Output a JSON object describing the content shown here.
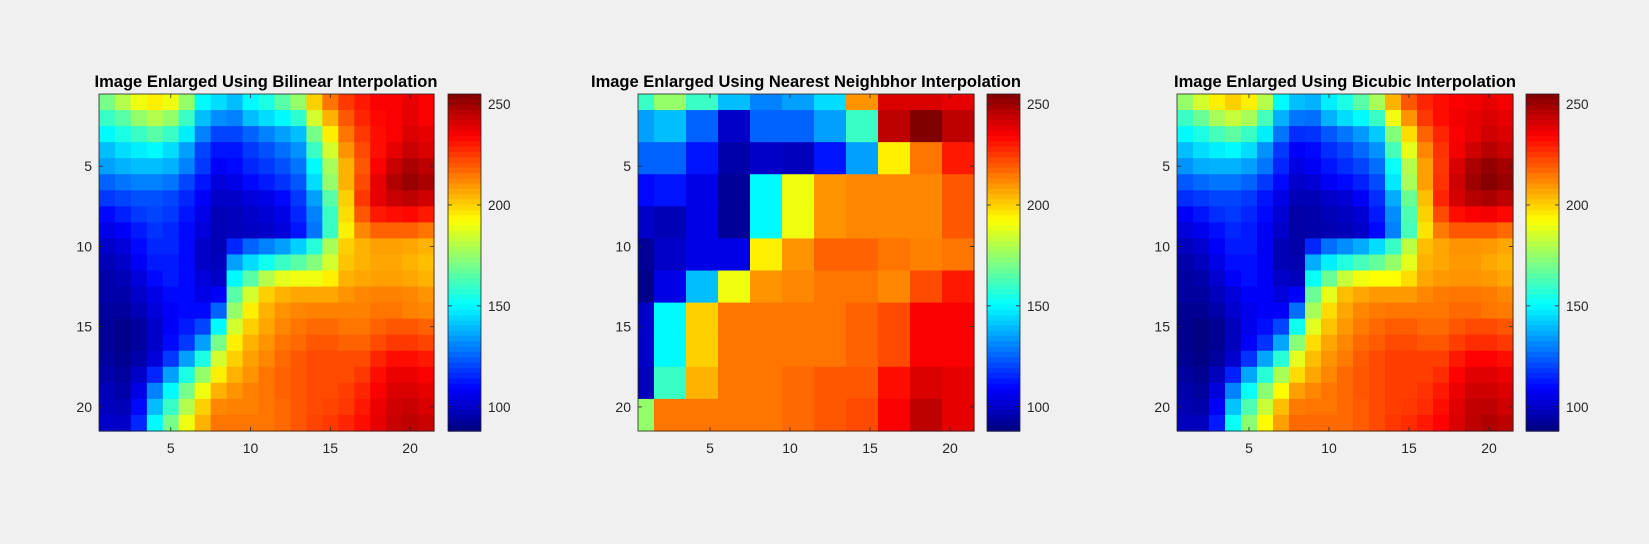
{
  "figure": {
    "background": "#f0f0f0"
  },
  "chart_data": [
    {
      "type": "heatmap",
      "title": "Image Enlarged Using Bilinear Interpolation",
      "colormap": "jet",
      "xlim": [
        0.5,
        21.5
      ],
      "ylim": [
        0.5,
        21.5
      ],
      "y_reversed": true,
      "xticks": [
        5,
        10,
        15,
        20
      ],
      "yticks": [
        5,
        10,
        15,
        20
      ],
      "clim": [
        88,
        255
      ],
      "colorbar_ticks": [
        100,
        150,
        200,
        250
      ],
      "grid": false,
      "z": [
        [
          170,
          180,
          190,
          195,
          190,
          175,
          150,
          145,
          140,
          150,
          155,
          165,
          175,
          200,
          215,
          225,
          230,
          235,
          235,
          238,
          235
        ],
        [
          160,
          165,
          175,
          180,
          175,
          160,
          140,
          132,
          130,
          140,
          145,
          150,
          158,
          185,
          205,
          220,
          228,
          233,
          235,
          238,
          235
        ],
        [
          150,
          155,
          160,
          165,
          160,
          148,
          130,
          120,
          120,
          125,
          130,
          135,
          140,
          170,
          195,
          215,
          225,
          232,
          235,
          240,
          238
        ],
        [
          140,
          145,
          148,
          150,
          145,
          135,
          120,
          112,
          112,
          118,
          122,
          127,
          133,
          160,
          185,
          210,
          222,
          232,
          238,
          243,
          240
        ],
        [
          135,
          138,
          140,
          140,
          138,
          130,
          118,
          108,
          110,
          115,
          118,
          122,
          128,
          150,
          178,
          205,
          220,
          235,
          243,
          248,
          245
        ],
        [
          125,
          128,
          130,
          130,
          128,
          120,
          112,
          103,
          105,
          110,
          113,
          117,
          123,
          145,
          175,
          205,
          222,
          238,
          247,
          251,
          248
        ],
        [
          118,
          120,
          122,
          122,
          120,
          115,
          108,
          100,
          100,
          103,
          105,
          110,
          118,
          135,
          165,
          200,
          225,
          238,
          243,
          245,
          242
        ],
        [
          110,
          114,
          118,
          120,
          118,
          112,
          105,
          97,
          98,
          100,
          102,
          105,
          115,
          130,
          160,
          198,
          220,
          230,
          232,
          233,
          230
        ],
        [
          105,
          108,
          113,
          117,
          115,
          110,
          103,
          97,
          98,
          99,
          100,
          103,
          112,
          128,
          160,
          195,
          212,
          218,
          218,
          218,
          215
        ],
        [
          100,
          103,
          110,
          115,
          115,
          110,
          100,
          97,
          115,
          125,
          130,
          135,
          143,
          157,
          178,
          200,
          205,
          208,
          208,
          207,
          205
        ],
        [
          97,
          100,
          107,
          113,
          113,
          110,
          100,
          98,
          135,
          145,
          153,
          160,
          165,
          172,
          185,
          202,
          205,
          207,
          207,
          205,
          203
        ],
        [
          95,
          97,
          103,
          110,
          113,
          110,
          103,
          100,
          150,
          165,
          180,
          188,
          190,
          190,
          195,
          205,
          207,
          208,
          208,
          207,
          205
        ],
        [
          95,
          95,
          100,
          105,
          110,
          110,
          105,
          108,
          165,
          185,
          200,
          205,
          207,
          207,
          207,
          210,
          212,
          213,
          213,
          212,
          210
        ],
        [
          93,
          93,
          97,
          103,
          108,
          110,
          110,
          125,
          175,
          195,
          205,
          210,
          212,
          213,
          213,
          213,
          213,
          215,
          215,
          213,
          212
        ],
        [
          92,
          90,
          93,
          100,
          108,
          113,
          120,
          150,
          185,
          200,
          207,
          212,
          215,
          217,
          217,
          215,
          215,
          218,
          220,
          220,
          218
        ],
        [
          92,
          90,
          93,
          100,
          110,
          118,
          135,
          170,
          195,
          205,
          210,
          215,
          217,
          220,
          220,
          218,
          218,
          222,
          225,
          225,
          223
        ],
        [
          93,
          91,
          95,
          103,
          118,
          135,
          155,
          185,
          200,
          208,
          212,
          217,
          220,
          222,
          222,
          222,
          222,
          228,
          232,
          232,
          230
        ],
        [
          95,
          93,
          100,
          115,
          135,
          155,
          175,
          195,
          205,
          210,
          215,
          218,
          220,
          222,
          222,
          222,
          225,
          232,
          237,
          237,
          235
        ],
        [
          97,
          95,
          105,
          130,
          150,
          170,
          190,
          205,
          210,
          213,
          215,
          218,
          220,
          222,
          222,
          224,
          228,
          235,
          240,
          240,
          238
        ],
        [
          98,
          97,
          110,
          140,
          160,
          180,
          200,
          212,
          213,
          213,
          215,
          217,
          220,
          222,
          223,
          225,
          230,
          237,
          242,
          243,
          240
        ],
        [
          100,
          100,
          115,
          150,
          170,
          190,
          205,
          215,
          215,
          215,
          215,
          217,
          220,
          223,
          225,
          228,
          232,
          238,
          243,
          245,
          243
        ]
      ]
    },
    {
      "type": "heatmap",
      "title": "Image Enlarged Using Nearest Neighbhor Interpolation",
      "colormap": "jet",
      "xlim": [
        0.5,
        21.5
      ],
      "ylim": [
        0.5,
        21.5
      ],
      "y_reversed": true,
      "xticks": [
        5,
        10,
        15,
        20
      ],
      "yticks": [
        5,
        10,
        15,
        20
      ],
      "clim": [
        88,
        255
      ],
      "colorbar_ticks": [
        100,
        150,
        200,
        250
      ],
      "grid": false,
      "block_rows": [
        1,
        3,
        5,
        7,
        9,
        11,
        13,
        15,
        17,
        19,
        21
      ],
      "block_cols": [
        1,
        3,
        5,
        7,
        9,
        11,
        13,
        15,
        17,
        19,
        21
      ],
      "block_row_edges": [
        0.5,
        1.5,
        3.5,
        5.5,
        7.5,
        9.5,
        11.5,
        13.5,
        15.5,
        17.5,
        19.5,
        21.5
      ],
      "block_col_edges": [
        0.5,
        1.5,
        3.5,
        5.5,
        7.5,
        9.5,
        11.5,
        13.5,
        15.5,
        17.5,
        19.5,
        21.5
      ],
      "z": [
        [
          160,
          175,
          160,
          140,
          130,
          135,
          145,
          210,
          240,
          240,
          238
        ],
        [
          135,
          140,
          125,
          100,
          125,
          125,
          135,
          160,
          245,
          255,
          245
        ],
        [
          125,
          125,
          112,
          95,
          100,
          98,
          112,
          135,
          195,
          215,
          230
        ],
        [
          110,
          112,
          105,
          92,
          150,
          190,
          210,
          212,
          212,
          212,
          220
        ],
        [
          100,
          97,
          105,
          92,
          150,
          190,
          210,
          212,
          212,
          212,
          220
        ],
        [
          92,
          100,
          105,
          105,
          195,
          210,
          218,
          218,
          215,
          213,
          215
        ],
        [
          90,
          105,
          140,
          190,
          210,
          212,
          215,
          215,
          212,
          222,
          230
        ],
        [
          100,
          150,
          200,
          215,
          215,
          215,
          215,
          218,
          222,
          235,
          235
        ],
        [
          100,
          150,
          200,
          215,
          215,
          215,
          215,
          218,
          222,
          235,
          235
        ],
        [
          98,
          160,
          205,
          215,
          215,
          217,
          220,
          220,
          232,
          240,
          238
        ],
        [
          175,
          215,
          215,
          215,
          215,
          217,
          220,
          222,
          235,
          245,
          238
        ]
      ]
    },
    {
      "type": "heatmap",
      "title": "Image Enlarged Using Bicubic Interpolation",
      "colormap": "jet",
      "xlim": [
        0.5,
        21.5
      ],
      "ylim": [
        0.5,
        21.5
      ],
      "y_reversed": true,
      "xticks": [
        5,
        10,
        15,
        20
      ],
      "yticks": [
        5,
        10,
        15,
        20
      ],
      "clim": [
        88,
        255
      ],
      "colorbar_ticks": [
        100,
        150,
        200,
        250
      ],
      "grid": false,
      "z": [
        [
          175,
          185,
          195,
          200,
          195,
          180,
          150,
          140,
          138,
          148,
          155,
          165,
          178,
          205,
          220,
          228,
          232,
          235,
          236,
          238,
          236
        ],
        [
          160,
          168,
          178,
          183,
          178,
          162,
          138,
          128,
          127,
          138,
          145,
          150,
          160,
          190,
          210,
          225,
          232,
          236,
          238,
          240,
          238
        ],
        [
          150,
          155,
          162,
          166,
          160,
          148,
          128,
          116,
          117,
          123,
          128,
          134,
          142,
          172,
          198,
          218,
          228,
          235,
          238,
          242,
          240
        ],
        [
          140,
          145,
          148,
          150,
          145,
          133,
          118,
          108,
          110,
          116,
          120,
          126,
          133,
          162,
          188,
          212,
          226,
          236,
          242,
          246,
          243
        ],
        [
          133,
          137,
          138,
          138,
          135,
          128,
          115,
          104,
          107,
          112,
          116,
          120,
          127,
          152,
          180,
          208,
          225,
          240,
          248,
          252,
          249
        ],
        [
          123,
          126,
          128,
          128,
          125,
          118,
          110,
          100,
          102,
          107,
          110,
          114,
          121,
          147,
          178,
          208,
          226,
          242,
          250,
          254,
          251
        ],
        [
          116,
          118,
          120,
          120,
          118,
          112,
          105,
          97,
          97,
          100,
          102,
          107,
          116,
          137,
          168,
          203,
          228,
          241,
          246,
          248,
          245
        ],
        [
          108,
          112,
          116,
          118,
          115,
          110,
          102,
          94,
          95,
          97,
          99,
          102,
          113,
          132,
          163,
          200,
          222,
          232,
          235,
          236,
          233
        ],
        [
          103,
          106,
          111,
          115,
          113,
          107,
          100,
          94,
          95,
          96,
          97,
          100,
          110,
          130,
          162,
          197,
          214,
          220,
          220,
          220,
          217
        ],
        [
          98,
          101,
          108,
          113,
          113,
          107,
          97,
          95,
          115,
          127,
          132,
          137,
          145,
          160,
          181,
          203,
          207,
          210,
          210,
          209,
          207
        ],
        [
          95,
          98,
          105,
          111,
          111,
          107,
          97,
          96,
          137,
          148,
          156,
          162,
          167,
          175,
          188,
          205,
          207,
          209,
          209,
          207,
          205
        ],
        [
          93,
          95,
          101,
          108,
          111,
          107,
          100,
          98,
          152,
          168,
          183,
          190,
          192,
          192,
          198,
          207,
          209,
          210,
          210,
          209,
          207
        ],
        [
          93,
          93,
          98,
          103,
          108,
          108,
          103,
          108,
          168,
          188,
          203,
          207,
          209,
          209,
          209,
          212,
          214,
          215,
          215,
          214,
          212
        ],
        [
          91,
          91,
          95,
          101,
          106,
          108,
          108,
          127,
          178,
          198,
          207,
          212,
          214,
          215,
          215,
          215,
          215,
          217,
          217,
          215,
          214
        ],
        [
          90,
          88,
          91,
          98,
          106,
          111,
          120,
          153,
          188,
          202,
          209,
          214,
          217,
          219,
          219,
          217,
          217,
          220,
          222,
          222,
          220
        ],
        [
          90,
          88,
          91,
          98,
          108,
          117,
          136,
          173,
          198,
          207,
          212,
          217,
          219,
          222,
          222,
          220,
          220,
          224,
          227,
          227,
          225
        ],
        [
          91,
          89,
          93,
          101,
          117,
          136,
          157,
          188,
          203,
          210,
          214,
          219,
          222,
          224,
          224,
          224,
          224,
          230,
          234,
          234,
          232
        ],
        [
          93,
          91,
          98,
          114,
          136,
          157,
          178,
          198,
          207,
          212,
          217,
          220,
          222,
          224,
          224,
          224,
          227,
          234,
          239,
          239,
          237
        ],
        [
          95,
          93,
          103,
          130,
          152,
          173,
          193,
          208,
          212,
          215,
          217,
          220,
          222,
          224,
          224,
          226,
          230,
          237,
          242,
          242,
          240
        ],
        [
          96,
          95,
          108,
          141,
          163,
          183,
          203,
          214,
          215,
          215,
          217,
          219,
          222,
          224,
          225,
          227,
          232,
          239,
          244,
          245,
          242
        ],
        [
          98,
          98,
          113,
          152,
          173,
          193,
          208,
          217,
          217,
          217,
          217,
          219,
          222,
          225,
          227,
          230,
          234,
          240,
          245,
          247,
          245
        ]
      ]
    }
  ]
}
